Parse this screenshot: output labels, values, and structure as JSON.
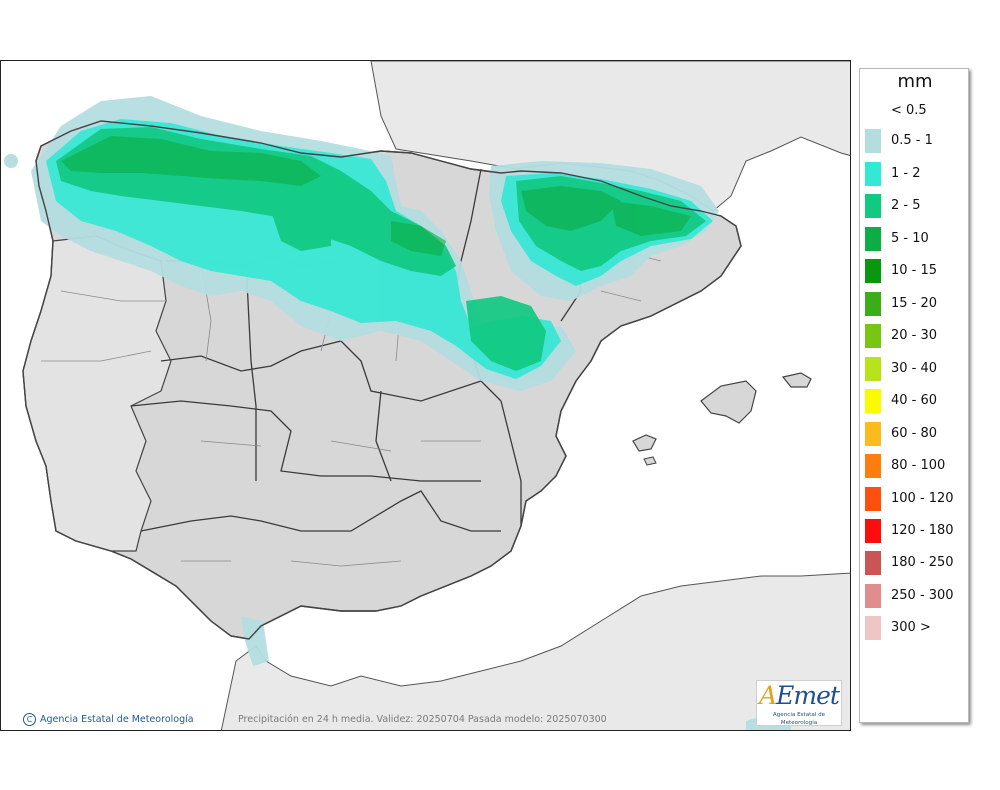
{
  "legend": {
    "unit": "mm",
    "items": [
      {
        "label": "< 0.5",
        "color": "#ffffff"
      },
      {
        "label": "0.5 - 1",
        "color": "#b4dde0"
      },
      {
        "label": "1 - 2",
        "color": "#33e8d4"
      },
      {
        "label": "2 - 5",
        "color": "#12c982"
      },
      {
        "label": "5 - 10",
        "color": "#0cad45"
      },
      {
        "label": "10 - 15",
        "color": "#0b960f"
      },
      {
        "label": "15 - 20",
        "color": "#3aad18"
      },
      {
        "label": "20 - 30",
        "color": "#79c514"
      },
      {
        "label": "30 - 40",
        "color": "#b8e31b"
      },
      {
        "label": "40 - 60",
        "color": "#fbfb00"
      },
      {
        "label": "60 - 80",
        "color": "#fbbb1d"
      },
      {
        "label": "80 - 100",
        "color": "#fd7e0e"
      },
      {
        "label": "100 - 120",
        "color": "#fd4f0e"
      },
      {
        "label": "120 - 180",
        "color": "#fd0e0e"
      },
      {
        "label": "180 - 250",
        "color": "#c95555"
      },
      {
        "label": "250 - 300",
        "color": "#df8d8d"
      },
      {
        "label": "300 >",
        "color": "#efc5c5"
      }
    ]
  },
  "footer": {
    "copyright": "Agencia Estatal de Meteorología",
    "caption": "Precipitación en 24 h media. Validez: 20250704 Pasada modelo: 2025070300"
  },
  "logo": {
    "wordmark_a": "A",
    "wordmark_rest": "Emet",
    "subtitle": "Agencia Estatal de Meteorología"
  },
  "colors": {
    "sea": "#ffffff",
    "land": "#d9d9d9",
    "foreign_land": "#e6e6e6",
    "border": "#3a3a3a"
  }
}
